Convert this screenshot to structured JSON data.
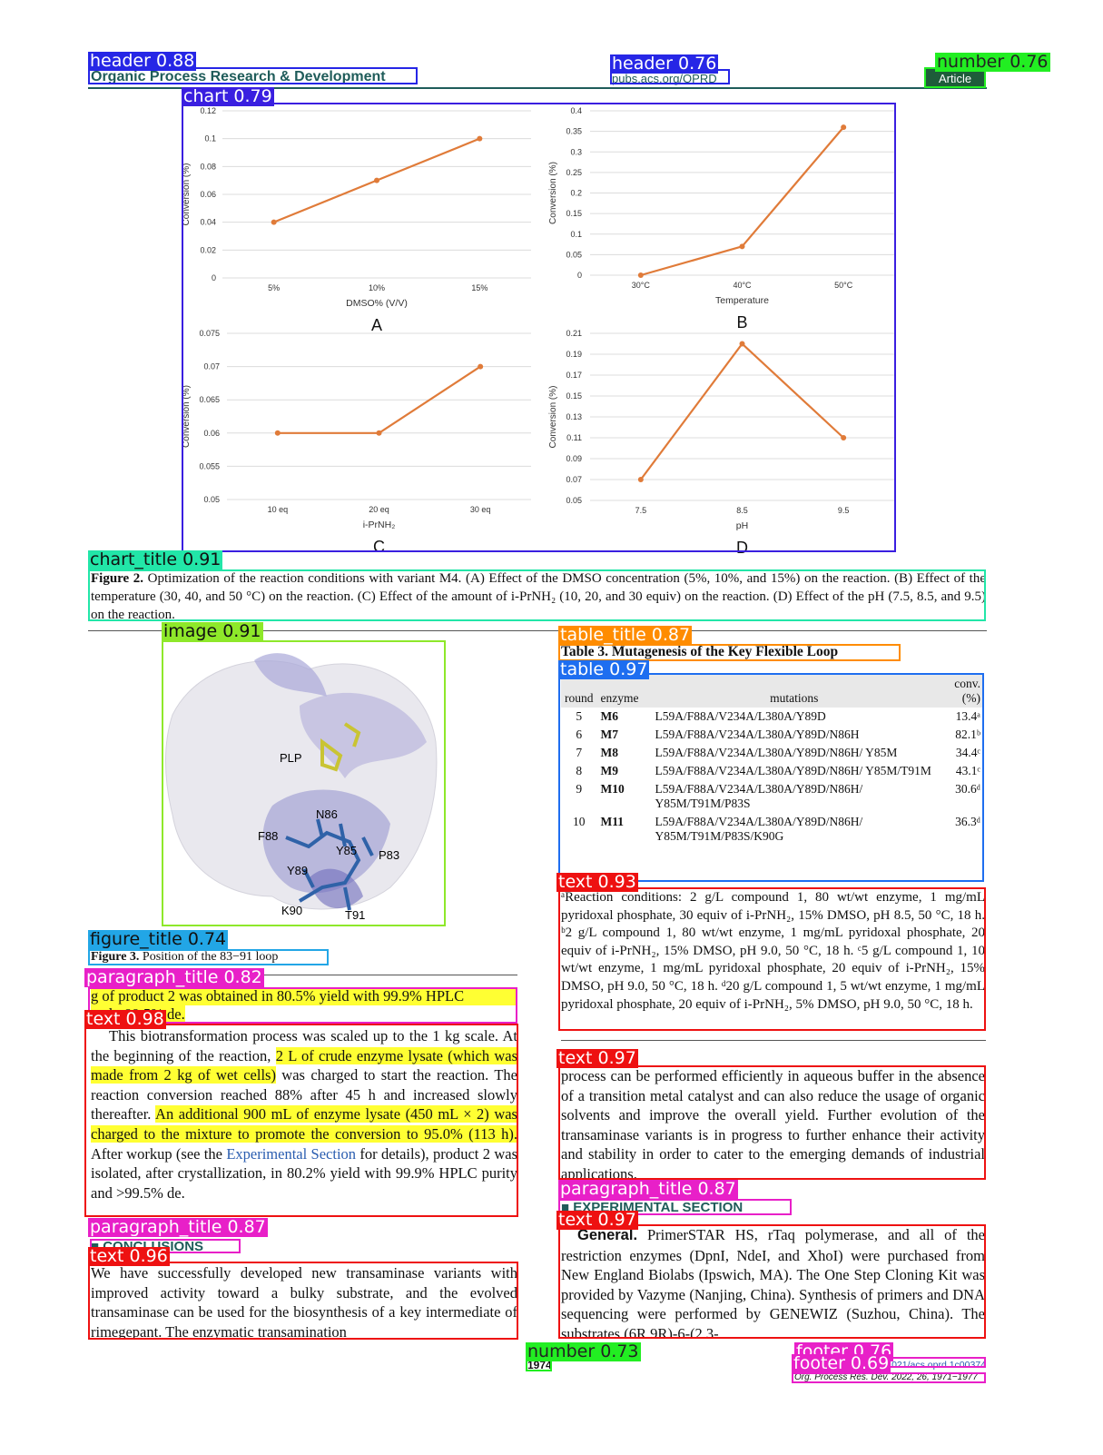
{
  "header": {
    "journal": "Organic Process Research & Development",
    "url": "pubs.acs.org/OPRD",
    "article_type": "Article"
  },
  "chart_data": [
    {
      "type": "line",
      "color": "#e07b39",
      "categories": [
        "5%",
        "10%",
        "15%"
      ],
      "values": [
        0.04,
        0.07,
        0.1
      ],
      "ylim": [
        0,
        0.12
      ],
      "yticks": [
        0,
        0.02,
        0.04,
        0.06,
        0.08,
        0.1,
        0.12
      ],
      "ylabel": "Conversion (%)",
      "xlabel": "DMSO% (V/V)",
      "panel": "A",
      "grid": true
    },
    {
      "type": "line",
      "color": "#e07b39",
      "categories": [
        "30°C",
        "40°C",
        "50°C"
      ],
      "values": [
        0,
        0.07,
        0.36
      ],
      "ylim": [
        0,
        0.4
      ],
      "yticks": [
        0,
        0.05,
        0.1,
        0.15,
        0.2,
        0.25,
        0.3,
        0.35,
        0.4
      ],
      "ylabel": "Conversion (%)",
      "xlabel": "Temperature",
      "panel": "B",
      "grid": true
    },
    {
      "type": "line",
      "color": "#e07b39",
      "categories": [
        "10 eq",
        "20 eq",
        "30 eq"
      ],
      "values": [
        0.06,
        0.06,
        0.07
      ],
      "ylim": [
        0.05,
        0.075
      ],
      "yticks": [
        0.05,
        0.055,
        0.06,
        0.065,
        0.07,
        0.075
      ],
      "ylabel": "Conversion (%)",
      "xlabel": "i-PrNH₂",
      "panel": "C",
      "grid": true
    },
    {
      "type": "line",
      "color": "#e07b39",
      "categories": [
        "7.5",
        "8.5",
        "9.5"
      ],
      "values": [
        0.07,
        0.2,
        0.11
      ],
      "ylim": [
        0.05,
        0.21
      ],
      "yticks": [
        0.05,
        0.07,
        0.09,
        0.11,
        0.13,
        0.15,
        0.17,
        0.19,
        0.21
      ],
      "ylabel": "Conversion (%)",
      "xlabel": "pH",
      "panel": "D",
      "grid": true
    }
  ],
  "figure2_caption": {
    "label": "Figure 2.",
    "text": " Optimization of the reaction conditions with variant M4. (A) Effect of the DMSO concentration (5%, 10%, and 15%) on the reaction. (B) Effect of the temperature (30, 40, and 50 °C) on the reaction. (C) Effect of the amount of i-PrNH₂ (10, 20, and 30 equiv) on the reaction. (D) Effect of the pH (7.5, 8.5, and 9.5) on the reaction."
  },
  "figure3": {
    "labels": [
      "PLP",
      "N86",
      "F88",
      "Y85",
      "P83",
      "Y89",
      "K90",
      "T91"
    ],
    "caption_label": "Figure 3.",
    "caption": " Position of the 83−91 loop"
  },
  "fragment": [
    "g of product 2 was obtained in 80.5% yield with 99.9% HPLC",
    "and >99.5% de."
  ],
  "scaleup": [
    "This biotransformation process was scaled up to the 1 kg scale. At the beginning of the reaction, ",
    "2 L of crude enzyme lysate (which was made from 2 kg of wet cells)",
    " was charged to start the reaction. The reaction conversion reached 88% after 45 h and increased slowly thereafter. ",
    "An additional 900 mL of enzyme lysate (450 mL × 2) was charged to the mixture to promote the conversion to 95.0% (113 h).",
    " After workup (see the ",
    "Experimental Section",
    " for details), product 2 was isolated, after crystallization, in 80.2% yield with 99.9% HPLC purity and >99.5% de."
  ],
  "conclusions": {
    "title": "■ CONCLUSIONS",
    "text": "We have successfully developed new transaminase variants with improved activity toward a bulky substrate, and the evolved transaminase can be used for the biosynthesis of a key intermediate of rimegepant. The enzymatic transamination"
  },
  "table": {
    "title": "Table 3. Mutagenesis of the Key Flexible Loop",
    "headers": [
      "round",
      "enzyme",
      "mutations",
      "conv. (%)"
    ],
    "rows": [
      [
        "5",
        "M6",
        "L59A/F88A/V234A/L380A/Y89D",
        "13.4ᵃ"
      ],
      [
        "6",
        "M7",
        "L59A/F88A/V234A/L380A/Y89D/N86H",
        "82.1ᵇ"
      ],
      [
        "7",
        "M8",
        "L59A/F88A/V234A/L380A/Y89D/N86H/ Y85M",
        "34.4ᶜ"
      ],
      [
        "8",
        "M9",
        "L59A/F88A/V234A/L380A/Y89D/N86H/ Y85M/T91M",
        "43.1ᶜ"
      ],
      [
        "9",
        "M10",
        "L59A/F88A/V234A/L380A/Y89D/N86H/ Y85M/T91M/P83S",
        "30.6ᵈ"
      ],
      [
        "10",
        "M11",
        "L59A/F88A/V234A/L380A/Y89D/N86H/ Y85M/T91M/P83S/K90G",
        "36.3ᵈ"
      ]
    ],
    "footnote": "ᵃReaction conditions: 2 g/L compound 1, 80 wt/wt enzyme, 1 mg/mL pyridoxal phosphate, 30 equiv of i-PrNH₂, 15% DMSO, pH 8.5, 50 °C, 18 h. ᵇ2 g/L compound 1, 80 wt/wt enzyme, 1 mg/mL pyridoxal phosphate, 20 equiv of i-PrNH₂, 15% DMSO, pH 9.0, 50 °C, 18 h. ᶜ5 g/L compound 1, 10 wt/wt enzyme, 1 mg/mL pyridoxal phosphate, 20 equiv of i-PrNH₂, 15% DMSO, pH 9.0, 50 °C, 18 h. ᵈ20 g/L compound 1, 5 wt/wt enzyme, 1 mg/mL pyridoxal phosphate, 20 equiv of i-PrNH₂, 5% DMSO, pH 9.0, 50 °C, 18 h."
  },
  "outlook": "process can be performed efficiently in aqueous buffer in the absence of a transition metal catalyst and can also reduce the usage of organic solvents and improve the overall yield. Further evolution of the transaminase variants is in progress to further enhance their activity and stability in order to cater to the emerging demands of industrial applications.",
  "experimental": {
    "title": "■ EXPERIMENTAL SECTION",
    "lead": "General.",
    "text": " PrimerSTAR HS, rTaq polymerase, and all of the restriction enzymes (DpnI, NdeI, and XhoI) were purchased from New England Biolabs (Ipswich, MA). The One Step Cloning Kit was provided by Vazyme (Nanjing, China). Synthesis of primers and DNA sequencing were performed by GENEWIZ (Suzhou, China). The substrates (6R,9R)-6-(2,3-"
  },
  "footer": {
    "page": "1974",
    "doi": "https://doi.org/10.1021/acs.oprd.1c00374",
    "citation": "Org. Process Res. Dev. 2022, 26, 1971−1977"
  },
  "detections": [
    "header 0.88",
    "header 0.76",
    "number 0.76",
    "chart 0.79",
    "chart_title 0.91",
    "image 0.91",
    "table_title 0.87",
    "table 0.97",
    "text 0.93",
    "figure_title 0.74",
    "paragraph_title 0.82",
    "text 0.98",
    "text 0.97",
    "paragraph_title 0.87",
    "text 0.97",
    "paragraph_title 0.87",
    "text 0.96",
    "number 0.73",
    "footer 0.76",
    "footer 0.69"
  ]
}
